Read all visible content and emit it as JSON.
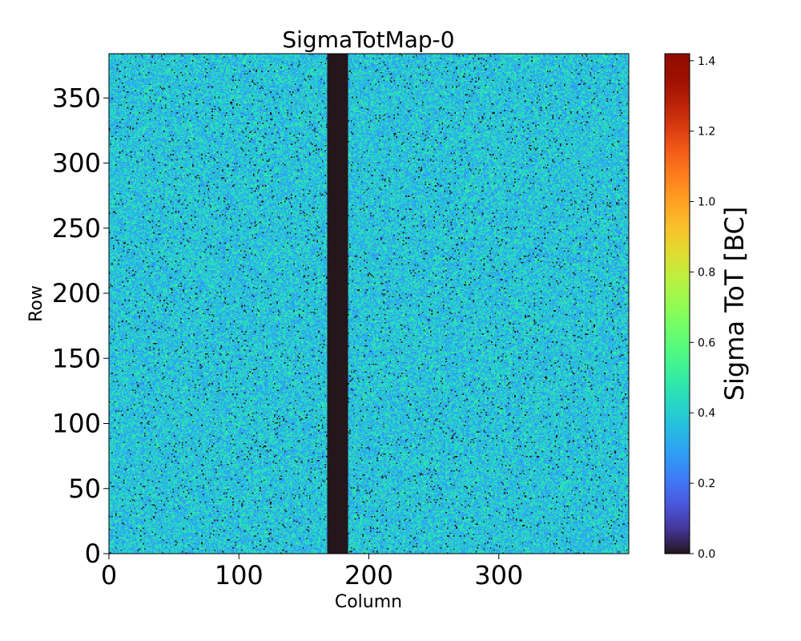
{
  "chart_data": {
    "type": "heatmap",
    "title": "SigmaTotMap-0",
    "xlabel": "Column",
    "ylabel": "Row",
    "xlim": [
      0,
      400
    ],
    "ylim": [
      0,
      384
    ],
    "x_ticks": [
      0,
      100,
      200,
      300
    ],
    "y_ticks": [
      0,
      50,
      100,
      150,
      200,
      250,
      300,
      350
    ],
    "x_tick_labels": [
      "0",
      "100",
      "200",
      "300"
    ],
    "y_tick_labels": [
      "0",
      "50",
      "100",
      "150",
      "200",
      "250",
      "300",
      "350"
    ],
    "colorbar": {
      "label": "Sigma ToT [BC]",
      "range": [
        0.0,
        1.42
      ],
      "ticks": [
        0.0,
        0.2,
        0.4,
        0.6,
        0.8,
        1.0,
        1.2,
        1.4
      ],
      "tick_labels": [
        "0.0",
        "0.2",
        "0.4",
        "0.6",
        "0.8",
        "1.0",
        "1.2",
        "1.4"
      ],
      "colormap": "turbo"
    },
    "typical_value_range": [
      0.25,
      0.5
    ],
    "dead_column_band": {
      "columns": [
        168,
        184
      ],
      "value": 0.0
    },
    "sparse_zero_pixels": true,
    "grid": false
  }
}
